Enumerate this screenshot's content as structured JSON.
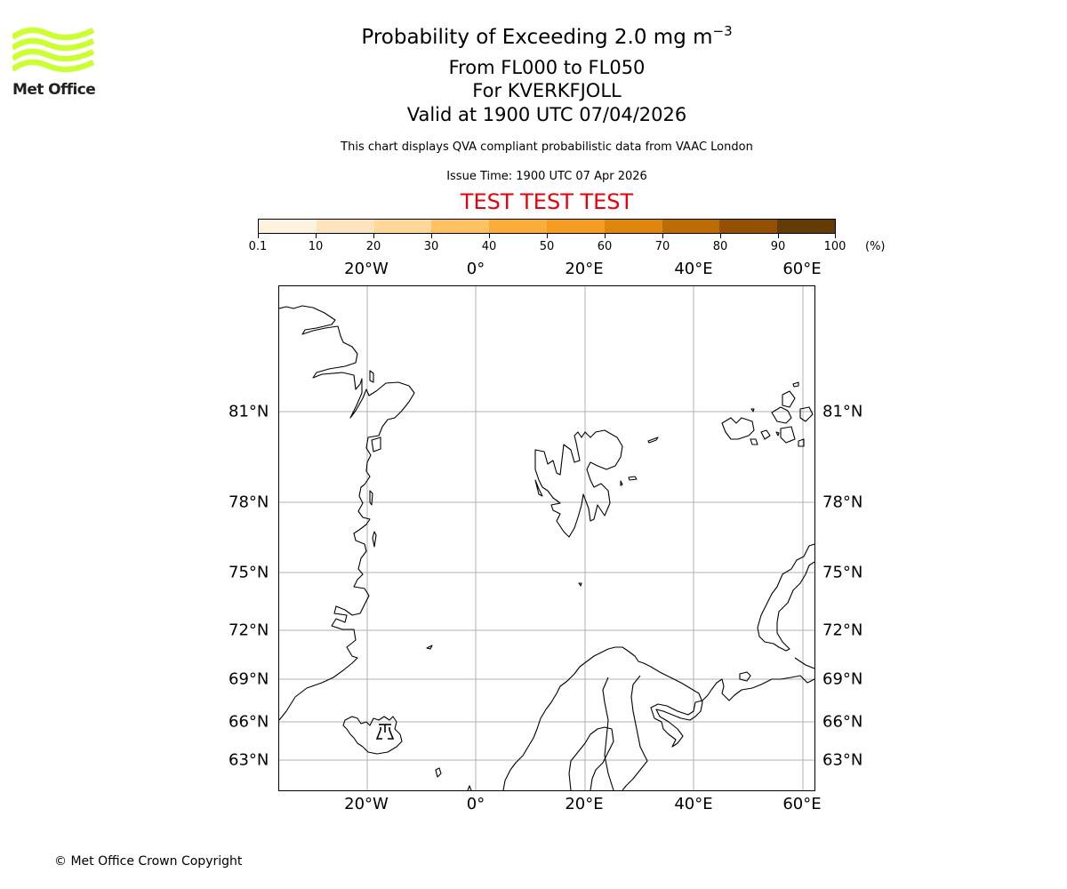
{
  "logo": {
    "text": "Met Office",
    "color": "#ccff33"
  },
  "header": {
    "title_main": "Probability of Exceeding 2.0 mg m",
    "title_sup": "−3",
    "level_range": "From FL000 to FL050",
    "volcano": "For KVERKFJOLL",
    "valid_time": "Valid at 1900 UTC 07/04/2026",
    "description": "This chart displays QVA compliant probabilistic data from VAAC London",
    "issue_time": "Issue Time: 1900 UTC 07 Apr 2026",
    "test_banner": "TEST TEST TEST",
    "test_color": "#e8000b"
  },
  "colorbar": {
    "unit": "(%)",
    "ticks": [
      "0.1",
      "10",
      "20",
      "30",
      "40",
      "50",
      "60",
      "70",
      "80",
      "90",
      "100"
    ],
    "colors": [
      "#fff3e0",
      "#fee3bf",
      "#fed799",
      "#fec163",
      "#fcad39",
      "#f49d20",
      "#de860e",
      "#bd6b05",
      "#945103",
      "#643a05"
    ]
  },
  "map": {
    "lon_labels": [
      "20°W",
      "0°",
      "20°E",
      "40°E",
      "60°E"
    ],
    "lat_labels": [
      "81°N",
      "78°N",
      "75°N",
      "72°N",
      "69°N",
      "66°N",
      "63°N"
    ],
    "volcano_marker": "volcano-symbol",
    "gridline_color": "#b0b0b0"
  },
  "chart_data": {
    "type": "heatmap",
    "title": "Probability of Exceeding 2.0 mg m⁻³ — From FL000 to FL050 — For KVERKFJOLL — Valid at 1900 UTC 07/04/2026",
    "subtitle": "This chart displays QVA compliant probabilistic data from VAAC London; Issue Time: 1900 UTC 07 Apr 2026",
    "colorbar_levels": [
      0.1,
      10,
      20,
      30,
      40,
      50,
      60,
      70,
      80,
      90,
      100
    ],
    "colorbar_unit": "%",
    "x_ticks": [
      "20°W",
      "0°",
      "20°E",
      "40°E",
      "60°E"
    ],
    "y_ticks": [
      "81°N",
      "78°N",
      "75°N",
      "72°N",
      "69°N",
      "66°N",
      "63°N"
    ],
    "grid": true,
    "data_plotted": "none visible (no shaded probability regions)",
    "annotation": "Volcano symbol at Kverkfjoll, Iceland"
  },
  "footer": {
    "copyright": "© Met Office Crown Copyright"
  }
}
